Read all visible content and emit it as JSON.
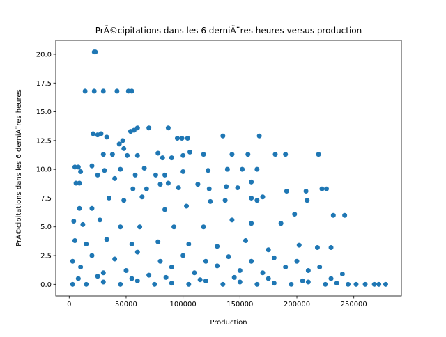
{
  "chart_data": {
    "type": "scatter",
    "title": "PrÃ©cipitations dans les 6 derniÃ¨res heures versus production",
    "x_label": "Production",
    "y_label": "PrÃ©cipitations dans les 6 derniÃ¨res heures",
    "color": "#1f77b4",
    "xlim": [
      -11800,
      291800
    ],
    "ylim": [
      -1.01,
      21.21
    ],
    "xticks": [
      0,
      50000,
      100000,
      150000,
      200000,
      250000
    ],
    "yticks": [
      {
        "value": 0,
        "label": "0.0"
      },
      {
        "value": 2.5,
        "label": "2.5"
      },
      {
        "value": 5,
        "label": "5.0"
      },
      {
        "value": 7.5,
        "label": "7.5"
      },
      {
        "value": 10,
        "label": "10.0"
      },
      {
        "value": 12.5,
        "label": "12.5"
      },
      {
        "value": 15,
        "label": "15.0"
      },
      {
        "value": 17.5,
        "label": "17.5"
      },
      {
        "value": 20,
        "label": "20.0"
      }
    ],
    "x": [
      22000,
      23000,
      14000,
      22000,
      30000,
      42000,
      52000,
      55000,
      21000,
      25000,
      28000,
      33000,
      47000,
      54000,
      57000,
      60000,
      70000,
      87000,
      95000,
      99000,
      104000,
      135000,
      167000,
      30000,
      38000,
      44000,
      48000,
      51000,
      60000,
      78000,
      82000,
      90000,
      100000,
      106000,
      118000,
      143000,
      157000,
      181000,
      190000,
      219000,
      5000,
      8000,
      10000,
      20000,
      31000,
      45000,
      58000,
      66000,
      76000,
      84000,
      100000,
      122000,
      139000,
      152000,
      165000,
      6000,
      9000,
      25000,
      40000,
      56000,
      68000,
      80000,
      87000,
      96000,
      113000,
      123000,
      138000,
      148000,
      160000,
      191000,
      208000,
      222000,
      226000,
      9000,
      20000,
      35000,
      48000,
      64000,
      84000,
      103000,
      124000,
      137000,
      160000,
      165000,
      170000,
      198000,
      209000,
      232000,
      242000,
      4000,
      12000,
      27000,
      45000,
      62000,
      92000,
      118000,
      143000,
      160000,
      186000,
      5000,
      15000,
      33000,
      55000,
      78000,
      105000,
      130000,
      155000,
      175000,
      202000,
      218000,
      230000,
      3000,
      10000,
      20000,
      30000,
      40000,
      50000,
      60000,
      70000,
      80000,
      90000,
      100000,
      110000,
      120000,
      130000,
      140000,
      150000,
      160000,
      170000,
      180000,
      190000,
      200000,
      210000,
      220000,
      230000,
      240000,
      3000,
      15000,
      30000,
      45000,
      60000,
      75000,
      90000,
      105000,
      120000,
      135000,
      150000,
      165000,
      180000,
      195000,
      210000,
      225000,
      235000,
      245000,
      252000,
      260000,
      268000,
      272000,
      278000,
      8000,
      25000,
      55000,
      85000,
      115000,
      145000,
      175000,
      205000
    ],
    "y": [
      20.2,
      20.2,
      16.8,
      16.8,
      16.8,
      16.8,
      16.8,
      16.8,
      13.1,
      13.0,
      13.1,
      12.8,
      12.5,
      13.3,
      13.4,
      13.6,
      13.6,
      13.6,
      12.7,
      12.7,
      12.7,
      12.9,
      12.9,
      11.3,
      11.3,
      12.2,
      11.8,
      11.2,
      11.2,
      11.4,
      11.0,
      11.0,
      11.2,
      11.5,
      11.3,
      11.3,
      11.3,
      11.3,
      11.3,
      11.3,
      10.2,
      10.2,
      9.8,
      10.3,
      9.9,
      10.0,
      9.5,
      10.1,
      9.5,
      9.5,
      9.8,
      9.9,
      10.0,
      10.0,
      10.0,
      8.8,
      8.8,
      9.5,
      9.2,
      8.3,
      8.3,
      8.7,
      8.8,
      8.4,
      8.7,
      8.3,
      8.5,
      8.4,
      8.9,
      8.1,
      8.1,
      8.3,
      8.3,
      6.6,
      6.6,
      7.5,
      7.3,
      7.6,
      6.5,
      6.8,
      7.2,
      7.3,
      7.5,
      7.3,
      7.6,
      6.1,
      7.3,
      6.0,
      6.0,
      5.5,
      5.2,
      5.6,
      5.0,
      5.0,
      5.0,
      5.0,
      5.6,
      5.3,
      5.3,
      3.8,
      3.5,
      3.9,
      3.5,
      3.7,
      3.5,
      3.3,
      3.8,
      3.0,
      3.4,
      3.2,
      3.2,
      2.0,
      1.5,
      2.5,
      1.0,
      2.2,
      1.2,
      2.8,
      0.8,
      2.0,
      1.5,
      2.5,
      1.0,
      2.0,
      1.6,
      2.4,
      1.2,
      2.0,
      1.0,
      2.3,
      1.5,
      2.0,
      1.2,
      1.5,
      0.5,
      0.9,
      0,
      0,
      0.2,
      0,
      0.3,
      0,
      0.1,
      0,
      0.3,
      0,
      0.2,
      0,
      0.1,
      0,
      0.2,
      0,
      0.1,
      0,
      0,
      0,
      0,
      0,
      0,
      0.5,
      0.7,
      0.5,
      0.6,
      0.4,
      0.6,
      0.5,
      0.3
    ]
  }
}
